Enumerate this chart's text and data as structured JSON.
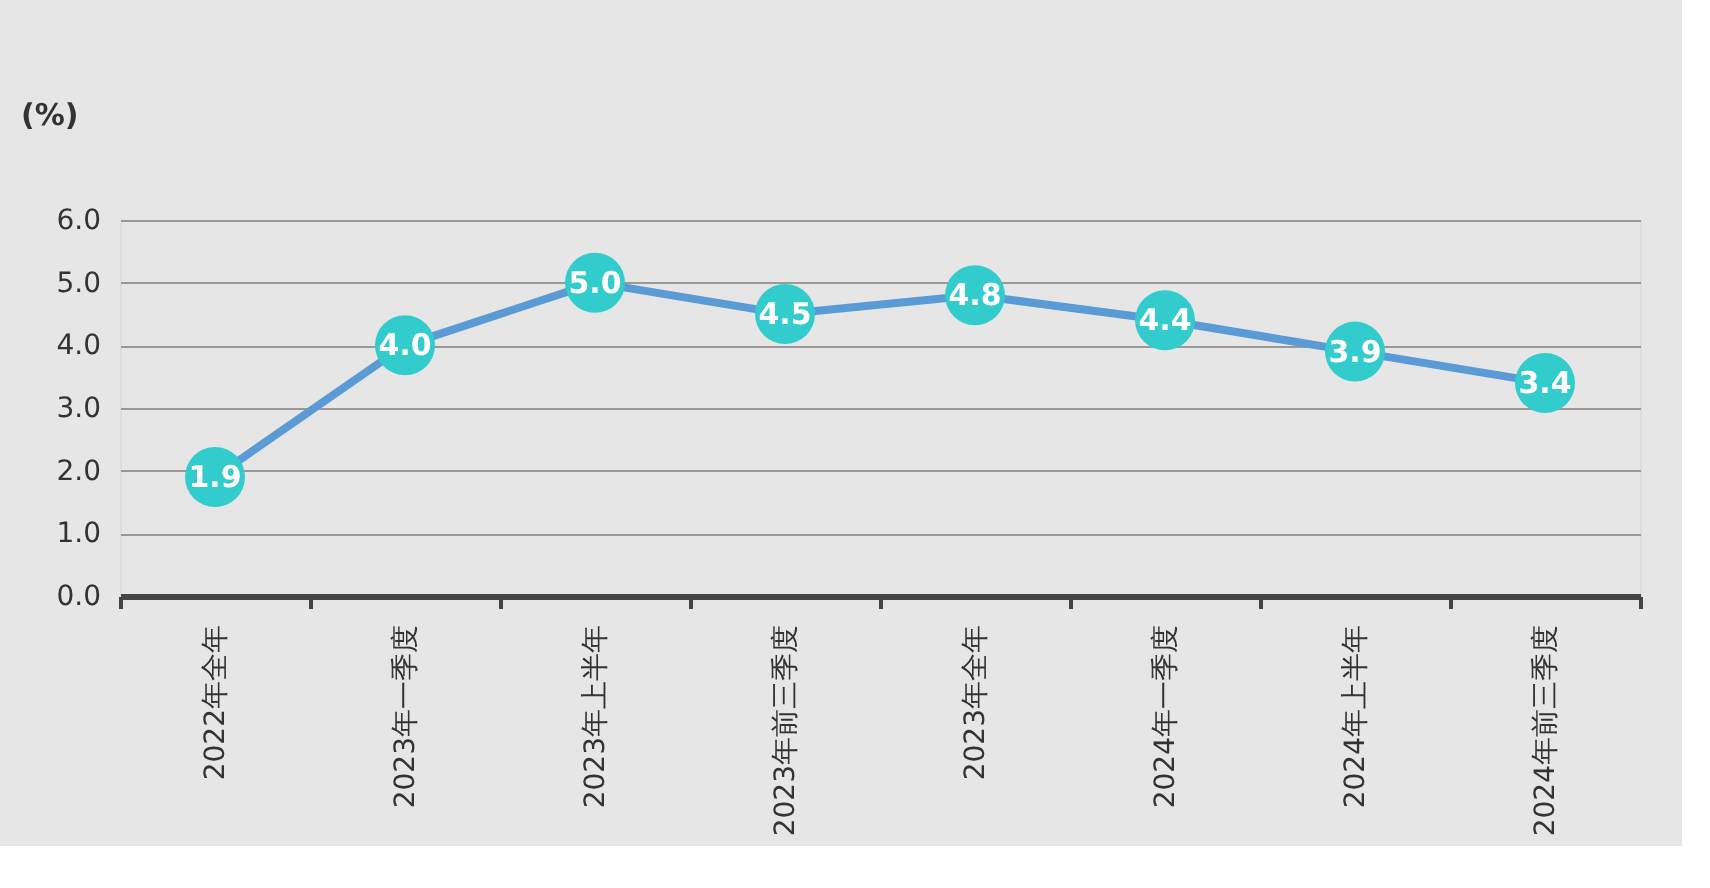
{
  "chart_data": {
    "type": "line",
    "ylabel": "(%)",
    "categories": [
      "2022年全年",
      "2023年一季度",
      "2023年上半年",
      "2023年前三季度",
      "2023年全年",
      "2024年一季度",
      "2024年上半年",
      "2024年前三季度"
    ],
    "series": [
      {
        "color": "#5b9bd5",
        "colors": [
          "#33cccc",
          "#33cccc",
          "#33cccc",
          "#33cccc",
          "#33cccc",
          "#33cccc",
          "#33cccc",
          "#33cccc"
        ],
        "values": [
          1.9,
          4.0,
          5.0,
          4.5,
          4.8,
          4.4,
          3.9,
          3.4
        ],
        "value_labels": [
          "1.9",
          "4.0",
          "5.0",
          "4.5",
          "4.8",
          "4.4",
          "3.9",
          "3.4"
        ]
      }
    ],
    "marker": "circle",
    "ylim": [
      0,
      6
    ],
    "yticks": [
      {
        "value": 0,
        "label": "0.0"
      },
      {
        "value": 1,
        "label": "1.0"
      },
      {
        "value": 2,
        "label": "2.0"
      },
      {
        "value": 3,
        "label": "3.0"
      },
      {
        "value": 4,
        "label": "4.0"
      },
      {
        "value": 5,
        "label": "5.0"
      },
      {
        "value": 6,
        "label": "6.0"
      }
    ],
    "grid": "y"
  }
}
